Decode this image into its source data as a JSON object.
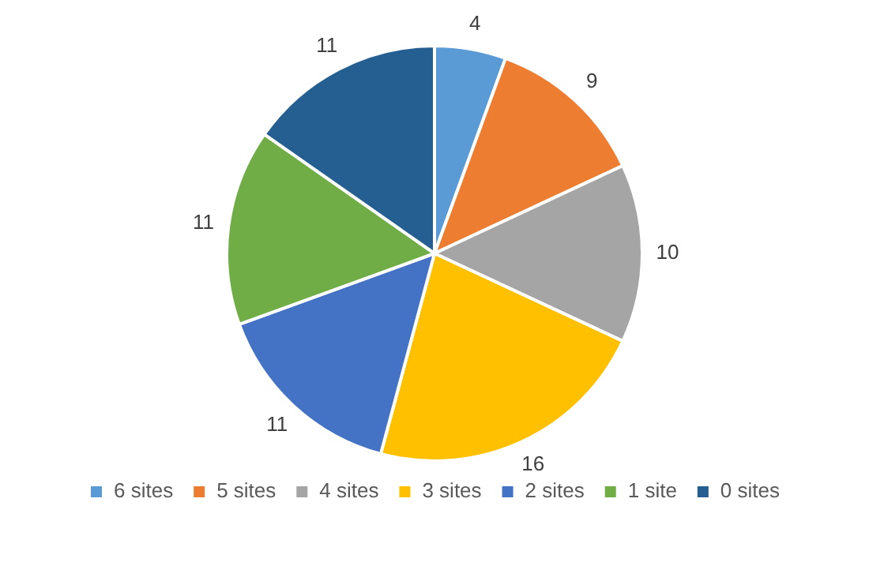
{
  "chart_data": {
    "type": "pie",
    "categories": [
      "6 sites",
      "5 sites",
      "4 sites",
      "3 sites",
      "2 sites",
      "1 site",
      "0 sites"
    ],
    "values": [
      4,
      9,
      10,
      16,
      11,
      11,
      11
    ],
    "colors": [
      "#5b9bd5",
      "#ed7d31",
      "#a5a5a5",
      "#ffc000",
      "#4472c4",
      "#70ad47",
      "#255e91"
    ],
    "data_labels": true,
    "legend": "bottom"
  }
}
